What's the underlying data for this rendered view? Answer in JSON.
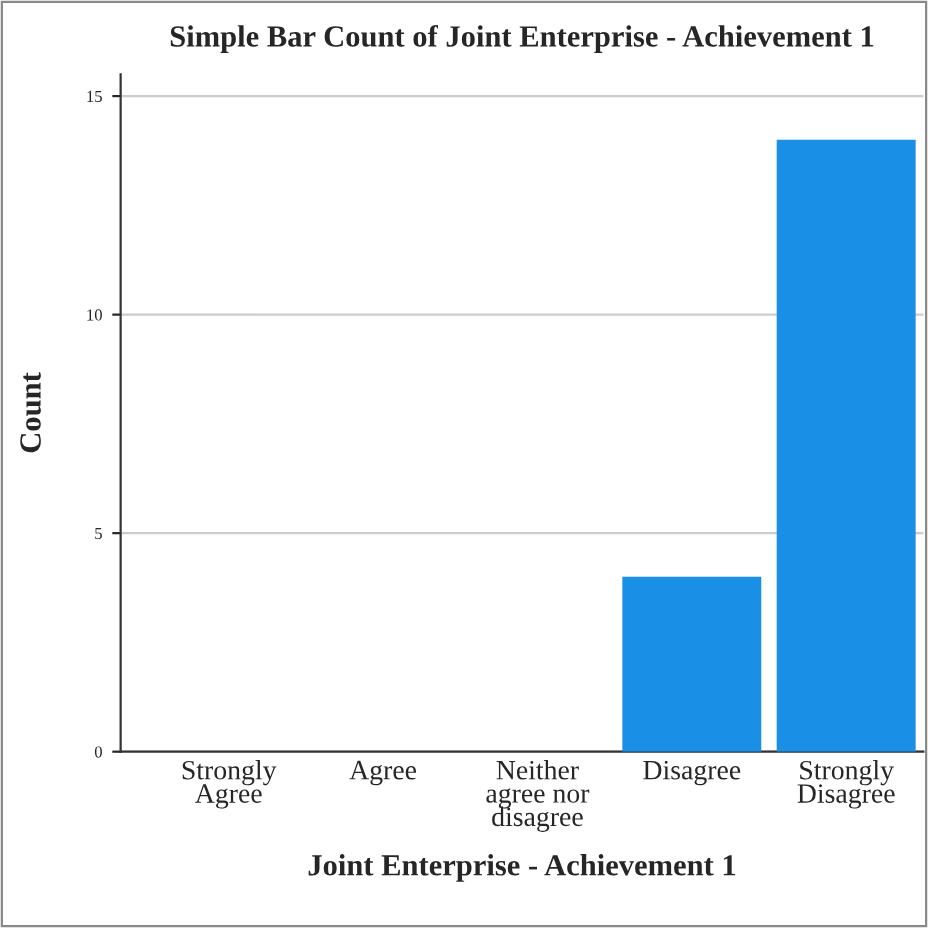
{
  "chart_data": {
    "type": "bar",
    "title": "Simple Bar Count of Joint Enterprise - Achievement 1",
    "xlabel": "Joint Enterprise - Achievement 1",
    "ylabel": "Count",
    "categories": [
      "Strongly Agree",
      "Agree",
      "Neither agree nor disagree",
      "Disagree",
      "Strongly Disagree"
    ],
    "values": [
      0,
      0,
      0,
      4,
      14
    ],
    "color": "#1a8fe6",
    "ylim": [
      0,
      15.5
    ],
    "yticks": [
      0,
      5,
      10,
      15
    ],
    "grid": "y",
    "legend": false
  }
}
